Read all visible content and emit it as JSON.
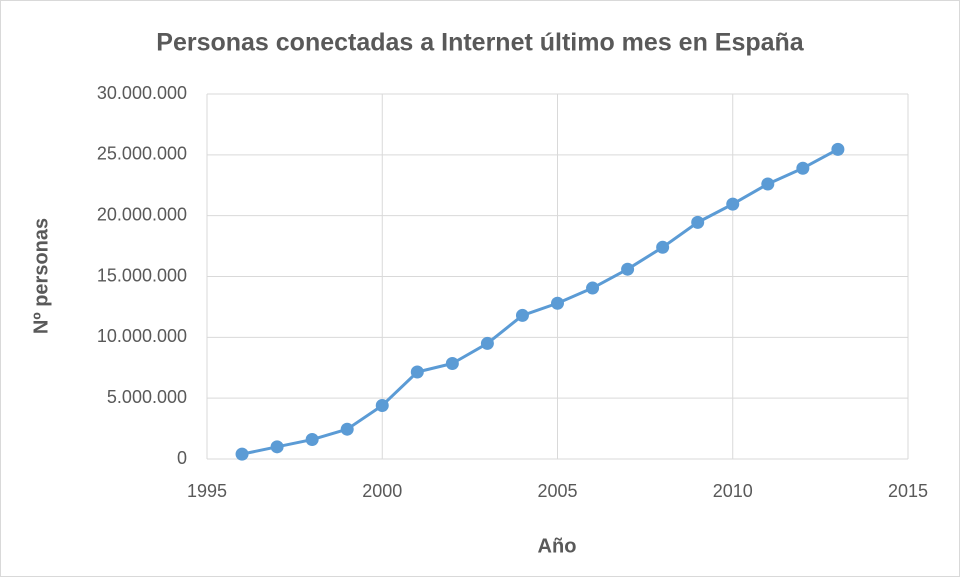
{
  "chart_data": {
    "type": "line",
    "title": "Personas conectadas a Internet último mes en España",
    "x_label": "Año",
    "y_label": "Nº personas",
    "x": [
      1996,
      1997,
      1998,
      1999,
      2000,
      2001,
      2002,
      2003,
      2004,
      2005,
      2006,
      2007,
      2008,
      2009,
      2010,
      2011,
      2012,
      2013
    ],
    "series": [
      {
        "name": "Nº personas",
        "color": "#5b9bd5",
        "values": [
          400000,
          1000000,
          1600000,
          2450000,
          4400000,
          7150000,
          7850000,
          9500000,
          11800000,
          12800000,
          14050000,
          15600000,
          17400000,
          19450000,
          20950000,
          22600000,
          23900000,
          25450000
        ]
      }
    ],
    "xlim": [
      1995,
      2015
    ],
    "xticks": [
      1995,
      2000,
      2005,
      2010,
      2015
    ],
    "ylim": [
      0,
      30000000
    ],
    "yticks": [
      0,
      {
        "value": 5000000,
        "label": "5.000.000"
      },
      {
        "value": 10000000,
        "label": "10.000.000"
      },
      {
        "value": 15000000,
        "label": "15.000.000"
      },
      {
        "value": 20000000,
        "label": "20.000.000"
      },
      {
        "value": 25000000,
        "label": "25.000.000"
      },
      {
        "value": 30000000,
        "label": "30.000.000"
      }
    ],
    "grid": true
  }
}
